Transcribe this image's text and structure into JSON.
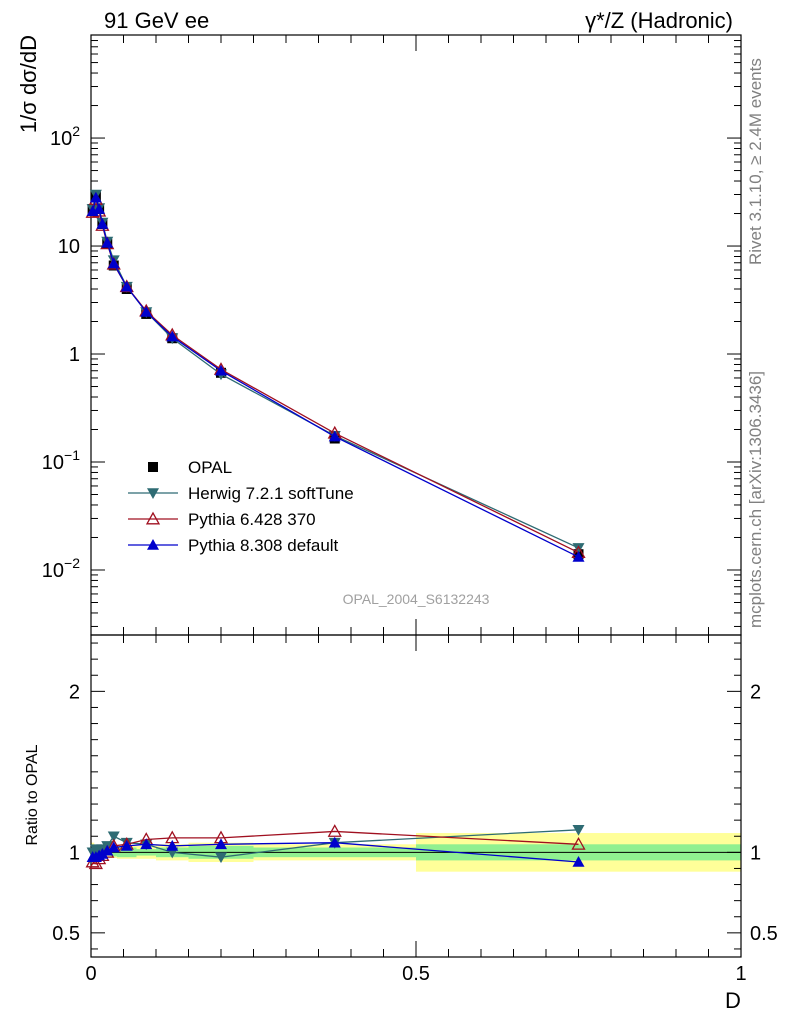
{
  "header": {
    "left": "91 GeV ee",
    "right": "γ*/Z (Hadronic)"
  },
  "side_labels": {
    "rivet": "Rivet 3.1.10, ≥ 2.4M events",
    "mcplots": "mcplots.cern.ch [arXiv:1306.3436]"
  },
  "watermark": "OPAL_2004_S6132243",
  "main_ylabel": "1/σ dσ/dD",
  "ratio_ylabel": "Ratio to OPAL",
  "xlabel": "D",
  "main_yticks": [
    {
      "v": 0.01,
      "base": "10",
      "exp": "−2"
    },
    {
      "v": 0.1,
      "base": "10",
      "exp": "−1"
    },
    {
      "v": 1,
      "base": "1",
      "exp": ""
    },
    {
      "v": 10,
      "base": "10",
      "exp": ""
    },
    {
      "v": 100,
      "base": "10",
      "exp": "2"
    }
  ],
  "ratio_yticks": [
    {
      "v": 0.5,
      "label": "0.5"
    },
    {
      "v": 1,
      "label": "1"
    },
    {
      "v": 2,
      "label": "2"
    }
  ],
  "xticks": [
    {
      "v": 0,
      "label": "0"
    },
    {
      "v": 0.5,
      "label": "0.5"
    },
    {
      "v": 1,
      "label": "1"
    }
  ],
  "legend": [
    {
      "label": "OPAL",
      "marker": "square",
      "color": "#000000"
    },
    {
      "label": "Herwig 7.2.1 softTune",
      "marker": "tri-down",
      "color": "#2e6b73"
    },
    {
      "label": "Pythia 6.428 370",
      "marker": "tri-open",
      "color": "#a01020"
    },
    {
      "label": "Pythia 8.308 default",
      "marker": "tri-up",
      "color": "#0000cc"
    }
  ],
  "chart_data": {
    "type": "scatter",
    "xlim": [
      0,
      1
    ],
    "ylim": [
      0.0025,
      900
    ],
    "y_scale": "log",
    "x": [
      0.0025,
      0.0075,
      0.0125,
      0.0175,
      0.025,
      0.035,
      0.055,
      0.085,
      0.125,
      0.2,
      0.375,
      0.75
    ],
    "bin_edges": [
      0,
      0.005,
      0.01,
      0.015,
      0.02,
      0.03,
      0.04,
      0.07,
      0.1,
      0.15,
      0.25,
      0.5,
      1.0
    ],
    "series": [
      {
        "name": "OPAL",
        "values": [
          22,
          29,
          22,
          16,
          10.5,
          6.6,
          4.0,
          2.35,
          1.4,
          0.67,
          0.165,
          0.014
        ]
      },
      {
        "name": "Herwig 7.2.1 softTune",
        "values": [
          22,
          30,
          22.5,
          16.5,
          11,
          7.4,
          4.2,
          2.45,
          1.4,
          0.65,
          0.175,
          0.016
        ]
      },
      {
        "name": "Pythia 6.428 370",
        "values": [
          20.5,
          27,
          21,
          15.5,
          10.5,
          6.8,
          4.2,
          2.5,
          1.5,
          0.72,
          0.185,
          0.0145
        ]
      },
      {
        "name": "Pythia 8.308 default",
        "values": [
          21,
          28,
          22,
          16,
          10.7,
          6.9,
          4.2,
          2.45,
          1.45,
          0.7,
          0.172,
          0.0132
        ]
      }
    ],
    "ratio": {
      "ylim": [
        0.35,
        2.35
      ],
      "band_inner": [
        0.03,
        0.02,
        0.02,
        0.02,
        0.02,
        0.025,
        0.03,
        0.02,
        0.03,
        0.04,
        0.03,
        0.05
      ],
      "band_outer": [
        0.06,
        0.04,
        0.035,
        0.035,
        0.03,
        0.035,
        0.04,
        0.04,
        0.05,
        0.06,
        0.05,
        0.12
      ],
      "series": [
        {
          "name": "Herwig 7.2.1 softTune",
          "values": [
            1.0,
            1.02,
            1.01,
            1.02,
            1.04,
            1.1,
            1.06,
            1.05,
            1.0,
            0.97,
            1.06,
            1.14
          ]
        },
        {
          "name": "Pythia 6.428 370",
          "values": [
            0.94,
            0.93,
            0.96,
            0.98,
            1.0,
            1.04,
            1.05,
            1.08,
            1.09,
            1.09,
            1.13,
            1.05
          ]
        },
        {
          "name": "Pythia 8.308 default",
          "values": [
            0.97,
            0.97,
            0.98,
            0.99,
            1.01,
            1.03,
            1.04,
            1.05,
            1.04,
            1.05,
            1.06,
            0.94
          ]
        }
      ]
    }
  }
}
